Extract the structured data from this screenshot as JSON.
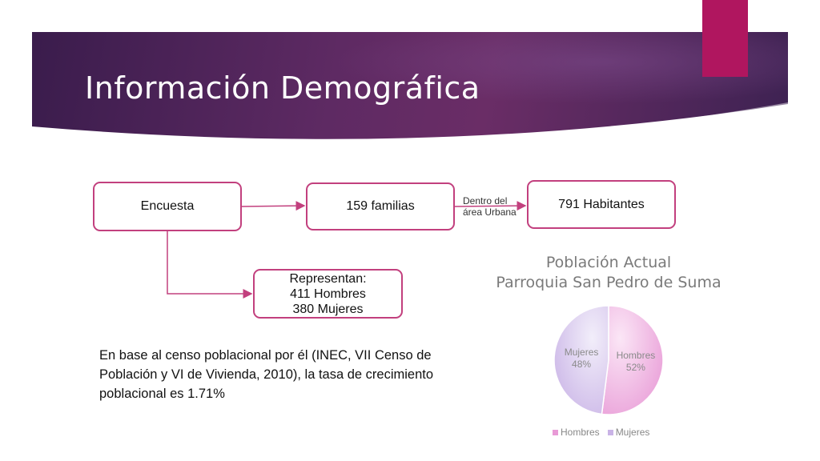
{
  "slide": {
    "title": "Información Demográfica"
  },
  "flow": {
    "encuesta": "Encuesta",
    "familias": "159 familias",
    "habitantes": "791 Habitantes",
    "arrow_note_line1": "Dentro del",
    "arrow_note_line2": "área Urbana",
    "representan_line1": "Representan:",
    "representan_line2": "411 Hombres",
    "representan_line3": "380 Mujeres"
  },
  "paragraph": {
    "line1": "En base al censo poblacional por él (INEC, VII Censo de",
    "line2": "Población y VI de Vivienda, 2010), la tasa de crecimiento",
    "line3": "poblacional es 1.71%"
  },
  "colors": {
    "accent": "#b0165f",
    "box_border": "#c2407e",
    "hombres": "#e89ad6",
    "mujeres": "#c9b3e6"
  },
  "chart_data": {
    "type": "pie",
    "title_line1": "Población Actual",
    "title_line2": "Parroquia San Pedro de Suma",
    "slices": [
      {
        "name": "Hombres",
        "label": "Hombres",
        "value": 52,
        "value_label": "52%"
      },
      {
        "name": "Mujeres",
        "label": "Mujeres",
        "value": 48,
        "value_label": "48%"
      }
    ],
    "legend": [
      "Hombres",
      "Mujeres"
    ],
    "legend_position": "bottom"
  }
}
